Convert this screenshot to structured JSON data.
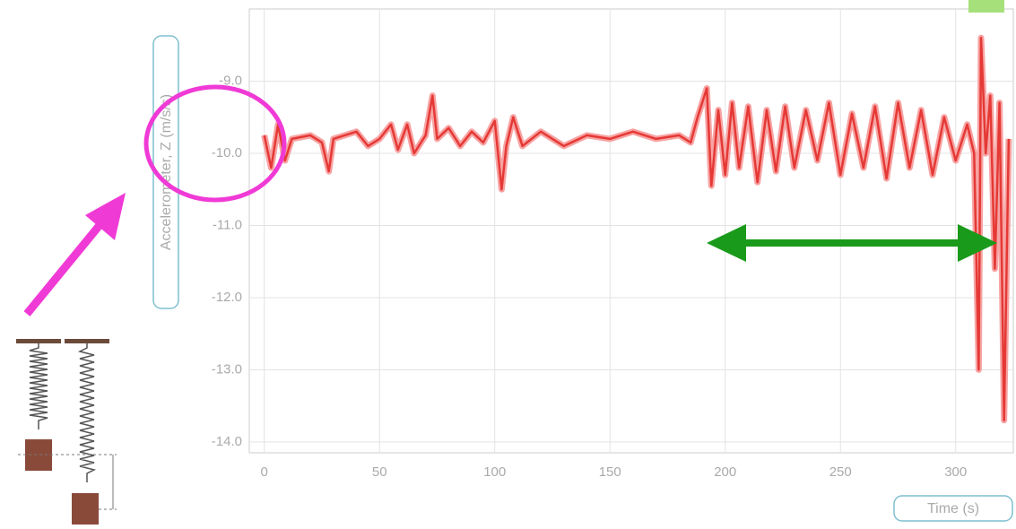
{
  "chart_data": {
    "type": "line",
    "y_label": "Accelerometer, Z (m/s/s)",
    "x_label": "Time (s)",
    "x": [
      0,
      3,
      6,
      9,
      12,
      20,
      25,
      28,
      30,
      40,
      45,
      50,
      55,
      58,
      62,
      65,
      70,
      73,
      75,
      80,
      85,
      90,
      95,
      100,
      103,
      105,
      108,
      112,
      120,
      130,
      140,
      150,
      160,
      170,
      180,
      185,
      188,
      192,
      194,
      197,
      200,
      203,
      206,
      210,
      214,
      218,
      222,
      226,
      230,
      235,
      240,
      245,
      250,
      255,
      260,
      265,
      270,
      275,
      280,
      285,
      290,
      295,
      300,
      305,
      308,
      310,
      311,
      313,
      315,
      317,
      319,
      321,
      323
    ],
    "series": [
      {
        "color": "#e53935",
        "values": [
          -9.75,
          -10.2,
          -9.6,
          -10.1,
          -9.8,
          -9.75,
          -9.85,
          -10.25,
          -9.8,
          -9.7,
          -9.9,
          -9.8,
          -9.6,
          -9.95,
          -9.6,
          -10.0,
          -9.75,
          -9.2,
          -9.8,
          -9.65,
          -9.9,
          -9.7,
          -9.85,
          -9.55,
          -10.5,
          -9.9,
          -9.5,
          -9.9,
          -9.7,
          -9.9,
          -9.75,
          -9.8,
          -9.7,
          -9.8,
          -9.75,
          -9.85,
          -9.5,
          -9.1,
          -10.45,
          -9.4,
          -10.3,
          -9.3,
          -10.2,
          -9.35,
          -10.4,
          -9.4,
          -10.25,
          -9.35,
          -10.2,
          -9.4,
          -10.1,
          -9.3,
          -10.3,
          -9.45,
          -10.2,
          -9.35,
          -10.35,
          -9.3,
          -10.2,
          -9.4,
          -10.3,
          -9.5,
          -10.1,
          -9.6,
          -10.0,
          -13.0,
          -8.4,
          -10.0,
          -9.2,
          -11.6,
          -9.3,
          -13.7,
          -9.8
        ]
      }
    ],
    "xlim": [
      -6.5,
      325
    ],
    "ylim": [
      -14.15,
      -8.0
    ],
    "xticks": [
      0,
      50,
      100,
      150,
      200,
      250,
      300
    ],
    "yticks": [
      {
        "value": -14,
        "label": "-14.0"
      },
      {
        "value": -13,
        "label": "-13.0"
      },
      {
        "value": -12,
        "label": "-12.0"
      },
      {
        "value": -11,
        "label": "-11.0"
      },
      {
        "value": -10,
        "label": "-10.0"
      },
      {
        "value": -9,
        "label": "-9.0"
      }
    ],
    "grid": true
  }
}
